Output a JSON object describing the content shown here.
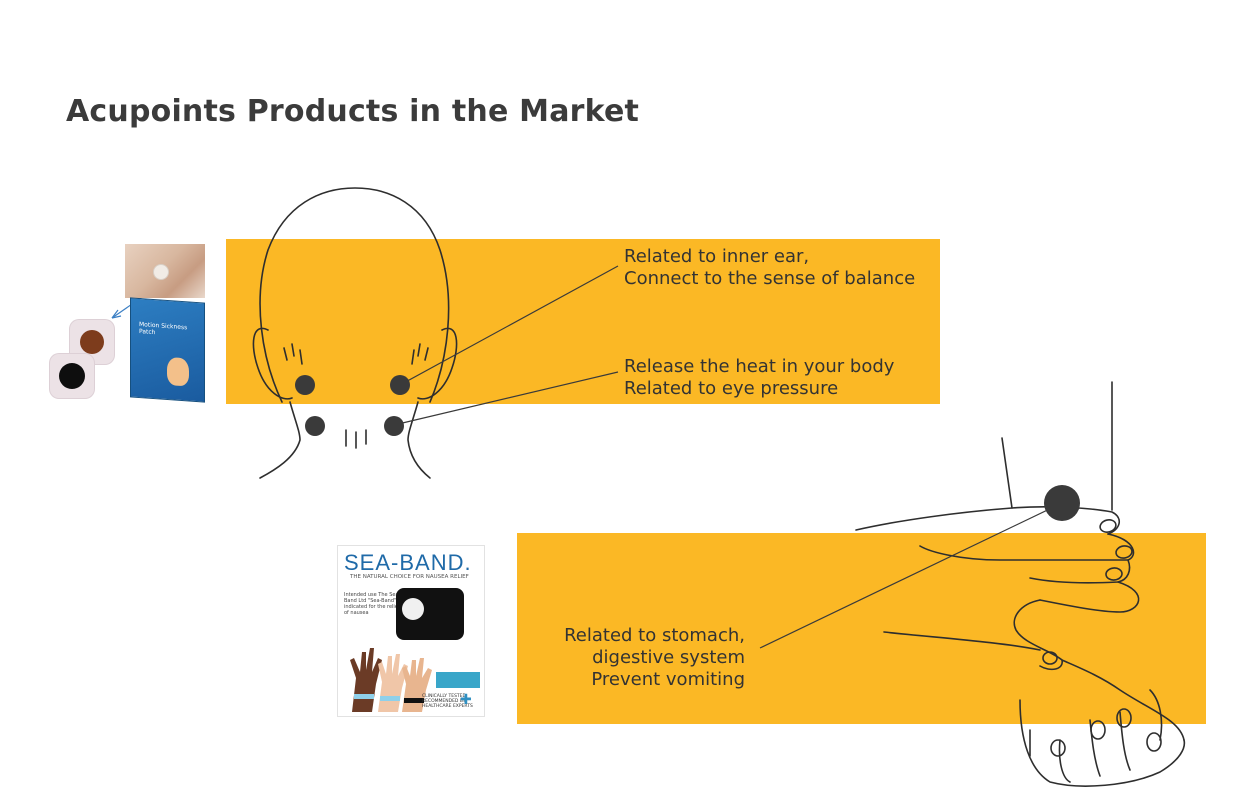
{
  "page": {
    "title": "Acupoints Products in the Market"
  },
  "annotations": {
    "head_upper": [
      "Related to inner ear,",
      "Connect to the sense of balance"
    ],
    "head_lower": [
      "Release the heat in your body",
      "Related to eye pressure"
    ],
    "wrist": [
      "Related to stomach,",
      "digestive system",
      "Prevent vomiting"
    ]
  },
  "products": {
    "patch": {
      "box_label": "Motion Sickness Patch"
    },
    "seaband": {
      "brand": "SEA-BAND.",
      "tagline": "THE NATURAL CHOICE FOR NAUSEA RELIEF",
      "intended_use": "Intended use The Sea-Band Ltd \"Sea-Band\" is indicated for the relief of nausea",
      "clinically_tested": "CLINICALLY TESTED RECOMMENDED BY HEALTHCARE EXPERTS"
    }
  },
  "colors": {
    "accent": "#fbb825",
    "title": "#3b3b3b",
    "acupoint": "#3a3a3a"
  }
}
